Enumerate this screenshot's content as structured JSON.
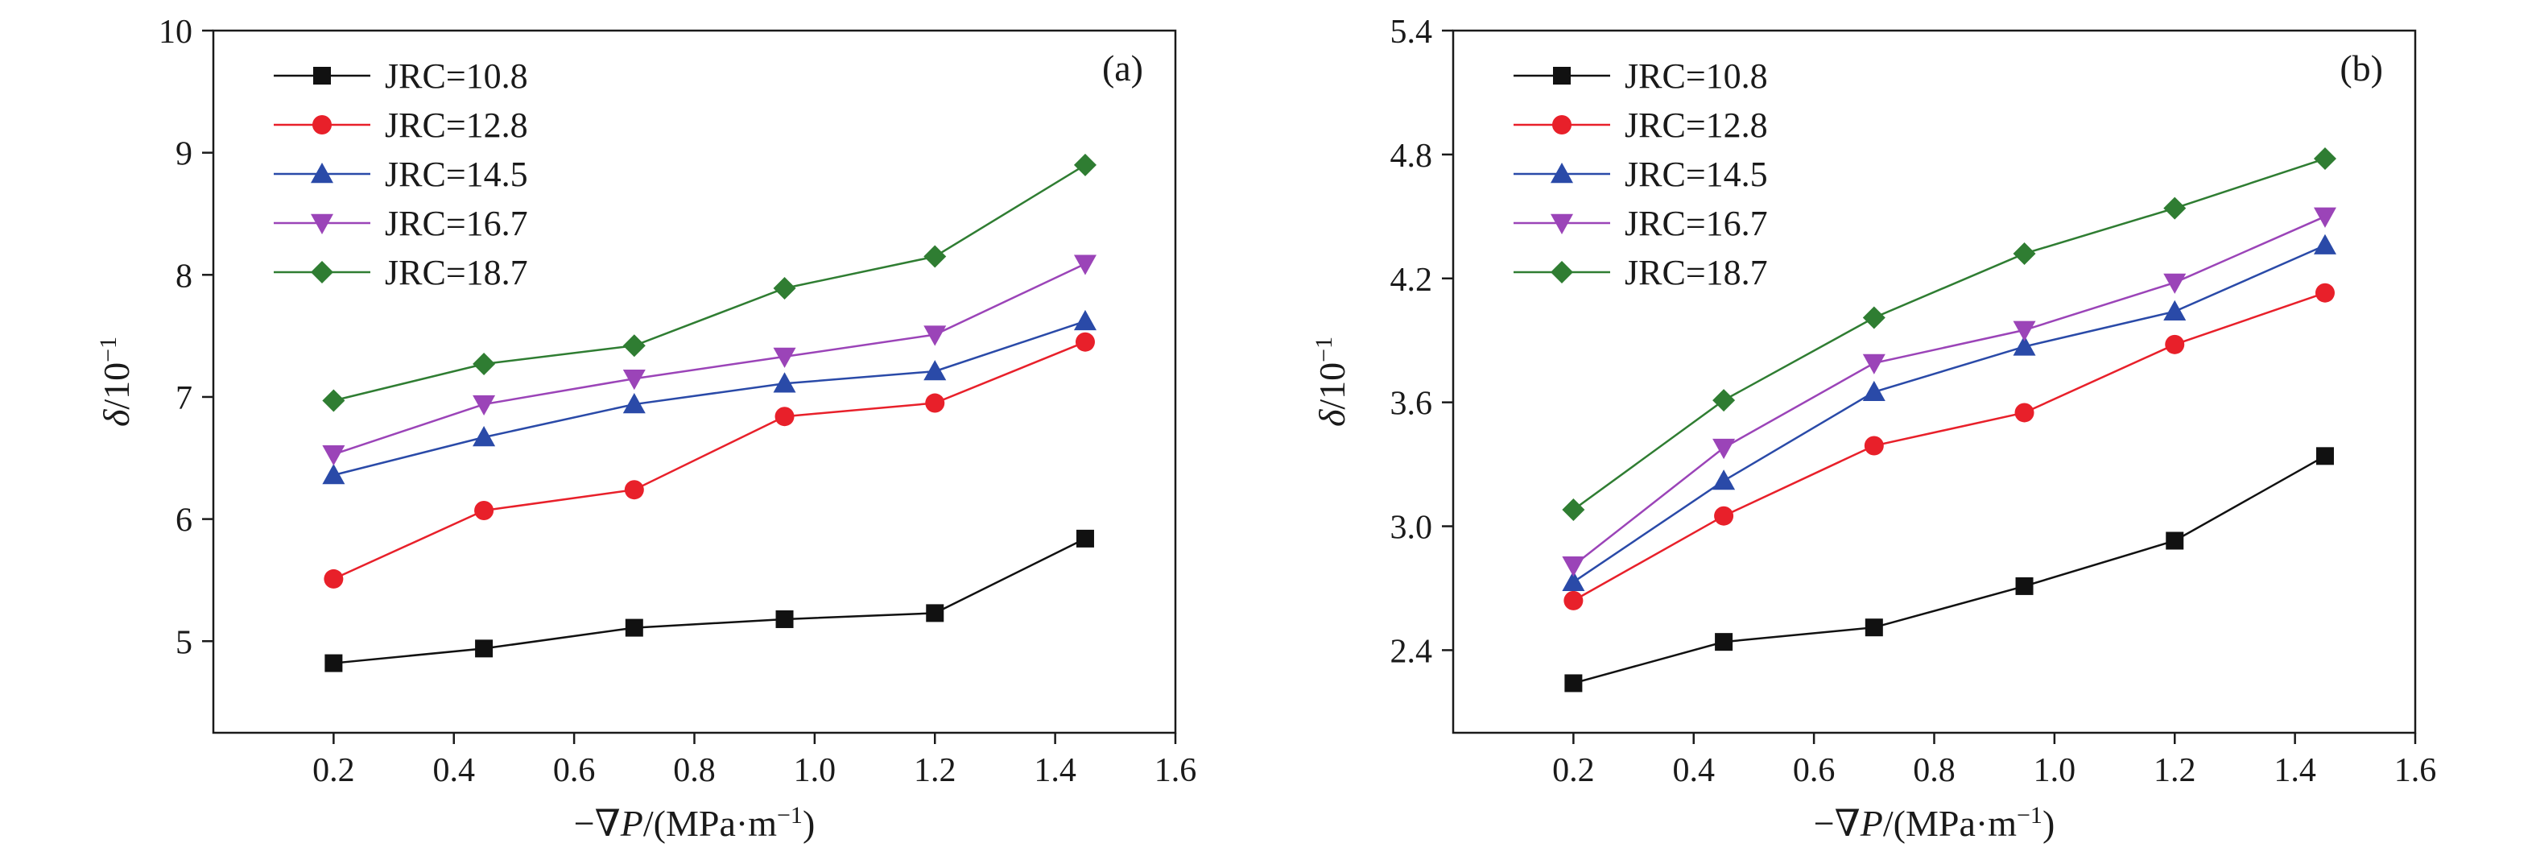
{
  "chart_data": [
    {
      "type": "line",
      "panel_label": "(a)",
      "xlabel": {
        "prefix": "−∇",
        "var": "P",
        "unit": "/(MPa·m",
        "exp": "−1",
        "close": ")"
      },
      "ylabel": {
        "var": "δ",
        "unit": "/10",
        "exp": "−1"
      },
      "xlim": [
        0.0,
        1.6
      ],
      "ylim": [
        4.25,
        10
      ],
      "xticks": [
        0.2,
        0.4,
        0.6,
        0.8,
        1.0,
        1.2,
        1.4,
        1.6
      ],
      "xtick_labels": [
        "0.2",
        "0.4",
        "0.6",
        "0.8",
        "1.0",
        "1.2",
        "1.4",
        "1.6"
      ],
      "yticks": [
        5,
        6,
        7,
        8,
        9,
        10
      ],
      "ytick_labels": [
        "5",
        "6",
        "7",
        "8",
        "9",
        "10"
      ],
      "x": [
        0.2,
        0.45,
        0.7,
        0.95,
        1.2,
        1.45
      ],
      "legend_position": "top-left",
      "grid": false,
      "series": [
        {
          "name": "JRC=10.8",
          "color": "#111111",
          "marker": "square",
          "values": [
            4.82,
            4.94,
            5.11,
            5.18,
            5.23,
            5.84
          ]
        },
        {
          "name": "JRC=12.8",
          "color": "#e8202a",
          "marker": "circle",
          "values": [
            5.51,
            6.07,
            6.24,
            6.84,
            6.95,
            7.45
          ]
        },
        {
          "name": "JRC=14.5",
          "color": "#2a4aa8",
          "marker": "triangle-up",
          "values": [
            6.36,
            6.67,
            6.94,
            7.11,
            7.21,
            7.62
          ]
        },
        {
          "name": "JRC=16.7",
          "color": "#9b44b8",
          "marker": "triangle-down",
          "values": [
            6.53,
            6.94,
            7.15,
            7.33,
            7.51,
            8.09
          ]
        },
        {
          "name": "JRC=18.7",
          "color": "#2f7d32",
          "marker": "diamond",
          "values": [
            6.97,
            7.27,
            7.42,
            7.89,
            8.15,
            8.9
          ]
        }
      ]
    },
    {
      "type": "line",
      "panel_label": "(b)",
      "xlabel": {
        "prefix": "−∇",
        "var": "P",
        "unit": "/(MPa·m",
        "exp": "−1",
        "close": ")"
      },
      "ylabel": {
        "var": "δ",
        "unit": "/10",
        "exp": "−1"
      },
      "xlim": [
        0.0,
        1.6
      ],
      "ylim": [
        2.0,
        5.4
      ],
      "xticks": [
        0.2,
        0.4,
        0.6,
        0.8,
        1.0,
        1.2,
        1.4,
        1.6
      ],
      "xtick_labels": [
        "0.2",
        "0.4",
        "0.6",
        "0.8",
        "1.0",
        "1.2",
        "1.4",
        "1.6"
      ],
      "yticks": [
        2.4,
        3.0,
        3.6,
        4.2,
        4.8,
        5.4
      ],
      "ytick_labels": [
        "2.4",
        "3.0",
        "3.6",
        "4.2",
        "4.8",
        "5.4"
      ],
      "x": [
        0.2,
        0.45,
        0.7,
        0.95,
        1.2,
        1.45
      ],
      "legend_position": "top-left",
      "grid": false,
      "series": [
        {
          "name": "JRC=10.8",
          "color": "#111111",
          "marker": "square",
          "values": [
            2.24,
            2.44,
            2.51,
            2.71,
            2.93,
            3.34
          ]
        },
        {
          "name": "JRC=12.8",
          "color": "#e8202a",
          "marker": "circle",
          "values": [
            2.64,
            3.05,
            3.39,
            3.55,
            3.88,
            4.13
          ]
        },
        {
          "name": "JRC=14.5",
          "color": "#2a4aa8",
          "marker": "triangle-up",
          "values": [
            2.73,
            3.22,
            3.65,
            3.87,
            4.04,
            4.36
          ]
        },
        {
          "name": "JRC=16.7",
          "color": "#9b44b8",
          "marker": "triangle-down",
          "values": [
            2.81,
            3.38,
            3.79,
            3.95,
            4.18,
            4.5
          ]
        },
        {
          "name": "JRC=18.7",
          "color": "#2f7d32",
          "marker": "diamond",
          "values": [
            3.08,
            3.61,
            4.01,
            4.32,
            4.54,
            4.78
          ]
        }
      ]
    }
  ]
}
